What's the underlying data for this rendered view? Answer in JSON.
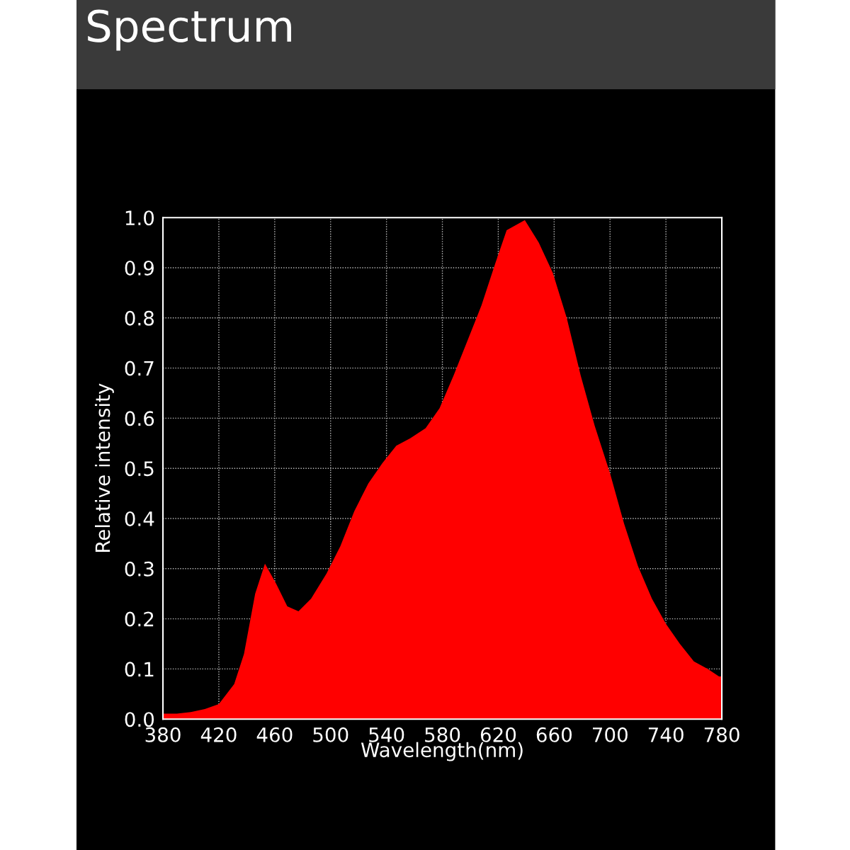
{
  "chart_data": {
    "type": "area",
    "title": "Spectrum",
    "xlabel": "Wavelength(nm)",
    "ylabel": "Relative intensity",
    "xlim": [
      380,
      780
    ],
    "xticks": [
      380,
      420,
      460,
      500,
      540,
      580,
      620,
      660,
      700,
      740,
      780
    ],
    "ylim": [
      0,
      1
    ],
    "yticks": [
      {
        "value": 0,
        "label": "0.0"
      },
      {
        "value": 0.1,
        "label": "0.1"
      },
      {
        "value": 0.2,
        "label": "0.2"
      },
      {
        "value": 0.3,
        "label": "0.3"
      },
      {
        "value": 0.4,
        "label": "0.4"
      },
      {
        "value": 0.5,
        "label": "0.5"
      },
      {
        "value": 0.6,
        "label": "0.6"
      },
      {
        "value": 0.7,
        "label": "0.7"
      },
      {
        "value": 0.8,
        "label": "0.8"
      },
      {
        "value": 0.9,
        "label": "0.9"
      },
      {
        "value": 1,
        "label": "1.0"
      }
    ],
    "grid": true,
    "legend": false,
    "series": [
      {
        "color": "#ff0000",
        "x": [
          380,
          390,
          400,
          410,
          420,
          431,
          438,
          446,
          453,
          461,
          469,
          477,
          486,
          497,
          507,
          517,
          527,
          537,
          547,
          557,
          568,
          578,
          588,
          598,
          608,
          618,
          626,
          639,
          649,
          659,
          669,
          679,
          689,
          700,
          710,
          720,
          730,
          740,
          750,
          760,
          770,
          778,
          780
        ],
        "values": [
          0.011,
          0.011,
          0.014,
          0.02,
          0.03,
          0.07,
          0.13,
          0.25,
          0.31,
          0.27,
          0.225,
          0.215,
          0.24,
          0.29,
          0.345,
          0.415,
          0.47,
          0.51,
          0.545,
          0.56,
          0.58,
          0.62,
          0.685,
          0.755,
          0.825,
          0.91,
          0.975,
          0.995,
          0.95,
          0.89,
          0.8,
          0.685,
          0.585,
          0.49,
          0.39,
          0.305,
          0.24,
          0.19,
          0.15,
          0.115,
          0.1,
          0.085,
          0.085
        ]
      }
    ]
  }
}
